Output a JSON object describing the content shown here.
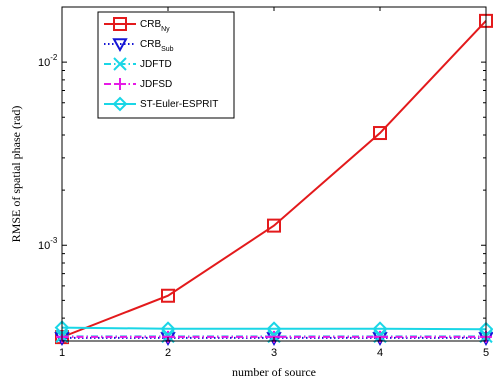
{
  "chart_data": {
    "type": "line",
    "xlabel": "number of source",
    "ylabel": "RMSE of spatial phase (rad)",
    "x": [
      1,
      2,
      3,
      4,
      5
    ],
    "xlim": [
      1,
      5
    ],
    "ylim": [
      0.0003,
      0.02
    ],
    "yscale": "log",
    "x_ticks": [
      "1",
      "2",
      "3",
      "4",
      "5"
    ],
    "y_ticks": [
      {
        "base": "10",
        "exp": "-3",
        "value": 0.001
      },
      {
        "base": "10",
        "exp": "-2",
        "value": 0.01
      }
    ],
    "grid": false,
    "legend_position": "top-left",
    "series": [
      {
        "name": "CRB",
        "name_sub": "Ny",
        "color": "#e31a1c",
        "marker": "square",
        "dash": "solid",
        "values": [
          0.000315,
          0.00053,
          0.00128,
          0.0041,
          0.0168
        ]
      },
      {
        "name": "CRB",
        "name_sub": "Sub",
        "color": "#1515d6",
        "marker": "triangle-down",
        "dash": "dotted",
        "values": [
          0.000312,
          0.000312,
          0.000312,
          0.000312,
          0.000312
        ]
      },
      {
        "name": "JDFTD",
        "name_sub": "",
        "color": "#1ad6e6",
        "marker": "x",
        "dash": "dashdot",
        "values": [
          0.000318,
          0.000318,
          0.000318,
          0.000318,
          0.000318
        ]
      },
      {
        "name": "JDFSD",
        "name_sub": "",
        "color": "#e61ae6",
        "marker": "plus",
        "dash": "dashdot",
        "values": [
          0.000316,
          0.000316,
          0.000316,
          0.000316,
          0.000316
        ]
      },
      {
        "name": "ST-Euler-ESPRIT",
        "name_sub": "",
        "color": "#1ad6e6",
        "marker": "diamond",
        "dash": "solid",
        "values": [
          0.000355,
          0.00035,
          0.00035,
          0.00035,
          0.000348
        ]
      }
    ]
  }
}
